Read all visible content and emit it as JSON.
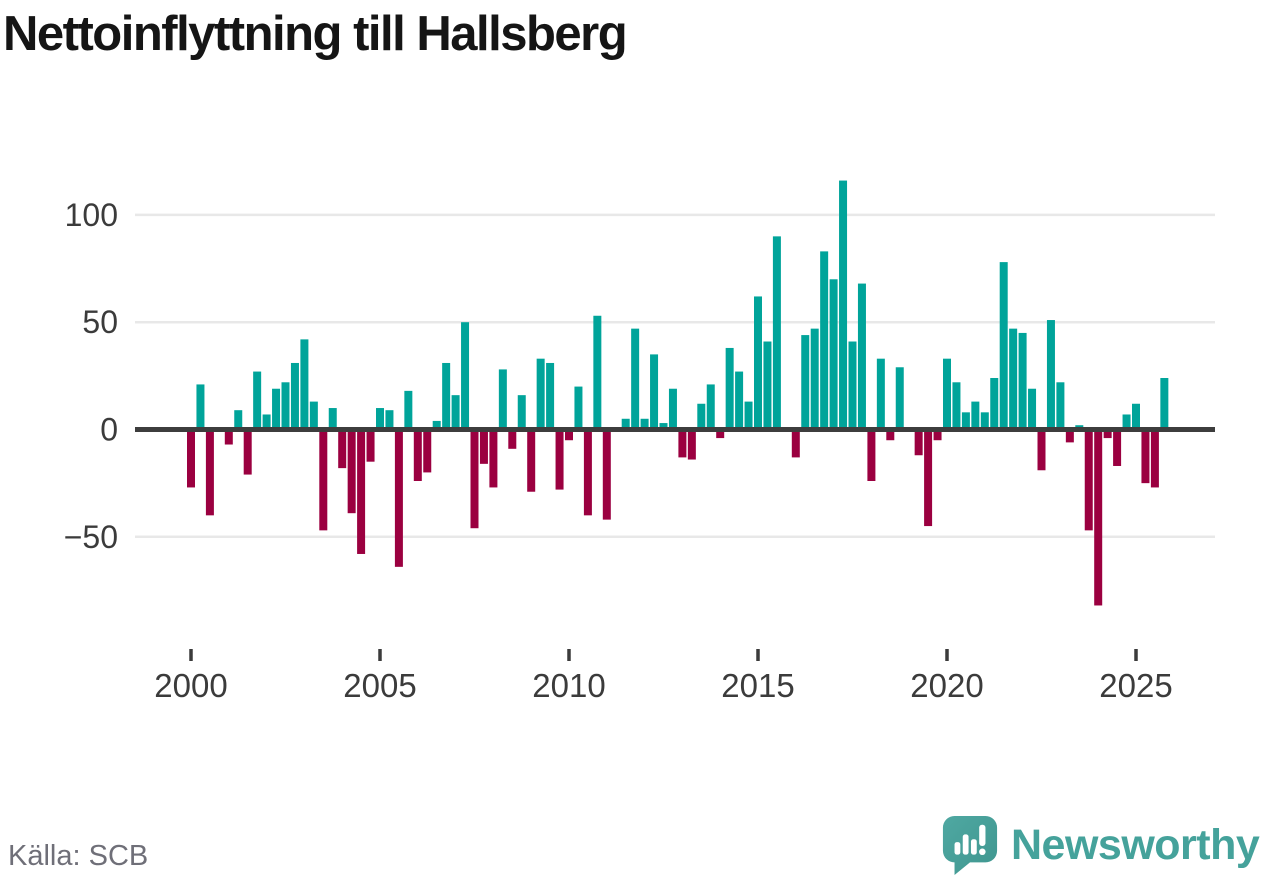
{
  "title": "Nettoinflyttning till Hallsberg",
  "source": "Källa: SCB",
  "logo_text": "Newsworthy",
  "colors": {
    "positive": "#00a49a",
    "negative": "#9b0040",
    "axis": "#3d3d3d",
    "grid": "#e8e8e8",
    "tick_label": "#3b3b3b",
    "source_text": "#6f6f78",
    "logo_teal": "#45a29b",
    "logo_bubble_light": "#4fa8a2",
    "logo_bubble_dark": "#3f968f"
  },
  "chart_data": {
    "type": "bar",
    "title": "Nettoinflyttning till Hallsberg",
    "xlabel": "",
    "ylabel": "",
    "frequency": "quarterly",
    "x_start_year": 2000,
    "x_tick_years": [
      2000,
      2005,
      2010,
      2015,
      2020,
      2025
    ],
    "y_ticks": [
      100,
      50,
      0,
      -50
    ],
    "ylim": [
      -90,
      125
    ],
    "grid": true,
    "legend": "none",
    "series_name": "Nettoinflyttning per kvartal",
    "values": [
      -27,
      21,
      -40,
      0,
      -7,
      9,
      -21,
      27,
      7,
      19,
      22,
      31,
      42,
      13,
      -47,
      10,
      -18,
      -39,
      -58,
      -15,
      10,
      9,
      -64,
      18,
      -24,
      -20,
      4,
      31,
      16,
      50,
      -46,
      -16,
      -27,
      28,
      -9,
      16,
      -29,
      33,
      31,
      -28,
      -5,
      20,
      -40,
      53,
      -42,
      0,
      5,
      47,
      5,
      35,
      3,
      19,
      -13,
      -14,
      12,
      21,
      -4,
      38,
      27,
      13,
      62,
      41,
      90,
      0,
      -13,
      44,
      47,
      83,
      70,
      116,
      41,
      68,
      -24,
      33,
      -5,
      29,
      0,
      -12,
      -45,
      -5,
      33,
      22,
      8,
      13,
      8,
      24,
      78,
      47,
      45,
      19,
      -19,
      51,
      22,
      -6,
      2,
      -47,
      -82,
      -4,
      -17,
      7,
      12,
      -25,
      -27,
      24
    ]
  }
}
